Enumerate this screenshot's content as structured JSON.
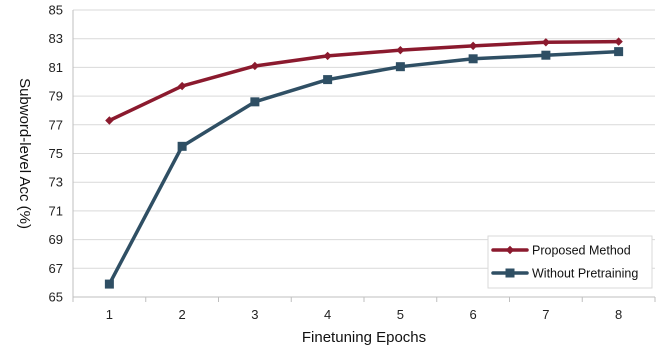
{
  "chart_data": {
    "type": "line",
    "title": "",
    "xlabel": "Finetuning Epochs",
    "ylabel": "Subword-level Acc (%)",
    "x": [
      1,
      2,
      3,
      4,
      5,
      6,
      7,
      8
    ],
    "categories": [
      "1",
      "2",
      "3",
      "4",
      "5",
      "6",
      "7",
      "8"
    ],
    "ylim": [
      65,
      85
    ],
    "yticks": [
      65,
      67,
      69,
      71,
      73,
      75,
      77,
      79,
      81,
      83,
      85
    ],
    "grid": "horizontal",
    "legend_position": "bottom-right",
    "series": [
      {
        "name": "Proposed Method",
        "color": "#8B1A2E",
        "marker": "diamond",
        "values": [
          77.3,
          79.7,
          81.1,
          81.8,
          82.2,
          82.5,
          82.75,
          82.8
        ]
      },
      {
        "name": "Without Pretraining",
        "color": "#2F4F64",
        "marker": "square",
        "values": [
          65.9,
          75.5,
          78.6,
          80.15,
          81.05,
          81.6,
          81.85,
          82.1
        ]
      }
    ]
  }
}
